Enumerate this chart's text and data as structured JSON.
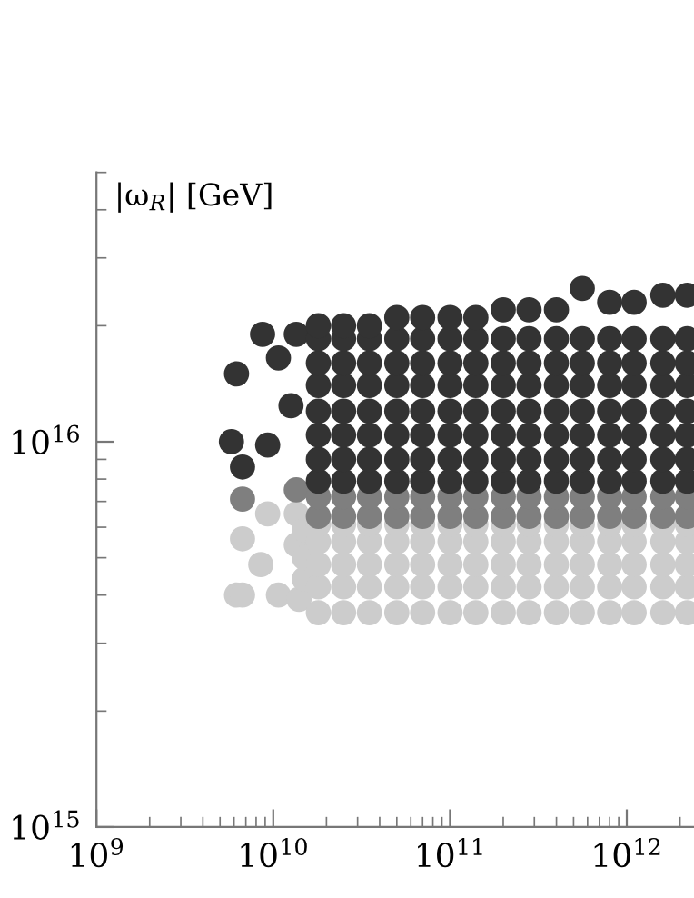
{
  "chart_data": {
    "type": "scatter",
    "ylabel": "|ω$_{R}$| [GeV]",
    "log": "xy",
    "grid": false,
    "legend": false,
    "marker": "circle",
    "xlim": [
      1000000000.0,
      2400000000000.0
    ],
    "ylim": [
      1000000000000000.0,
      5e+16
    ],
    "xticks": [
      {
        "value": 1000000000.0,
        "label": "10$^{9}$"
      },
      {
        "value": 10000000000.0,
        "label": "10$^{10}$"
      },
      {
        "value": 100000000000.0,
        "label": "10$^{11}$"
      },
      {
        "value": 1000000000000.0,
        "label": "10$^{12}$"
      }
    ],
    "yticks": [
      {
        "value": 1000000000000000.0,
        "label": "10$^{15}$"
      },
      {
        "value": 1e+16,
        "label": "10$^{16}$"
      }
    ],
    "series": [
      {
        "color": "#cccccc",
        "x": [
          6200000000.0,
          6700000000.0,
          6700000000.0,
          9300000000.0,
          8500000000.0,
          13500000000.0,
          13500000000.0,
          10700000000.0,
          14000000000.0,
          15000000000.0,
          15000000000.0,
          15000000000.0,
          18000000000.0,
          18000000000.0,
          18000000000.0,
          18000000000.0,
          18000000000.0,
          25000000000.0,
          25000000000.0,
          25000000000.0,
          25000000000.0,
          25000000000.0,
          35000000000.0,
          35000000000.0,
          35000000000.0,
          35000000000.0,
          35000000000.0,
          50000000000.0,
          50000000000.0,
          50000000000.0,
          50000000000.0,
          50000000000.0,
          70000000000.0,
          70000000000.0,
          70000000000.0,
          70000000000.0,
          70000000000.0,
          100000000000.0,
          100000000000.0,
          100000000000.0,
          100000000000.0,
          100000000000.0,
          140000000000.0,
          140000000000.0,
          140000000000.0,
          140000000000.0,
          140000000000.0,
          200000000000.0,
          200000000000.0,
          200000000000.0,
          200000000000.0,
          200000000000.0,
          280000000000.0,
          280000000000.0,
          280000000000.0,
          280000000000.0,
          280000000000.0,
          400000000000.0,
          400000000000.0,
          400000000000.0,
          400000000000.0,
          400000000000.0,
          560000000000.0,
          560000000000.0,
          560000000000.0,
          560000000000.0,
          560000000000.0,
          800000000000.0,
          800000000000.0,
          800000000000.0,
          800000000000.0,
          800000000000.0,
          1100000000000.0,
          1100000000000.0,
          1100000000000.0,
          1100000000000.0,
          1100000000000.0,
          1600000000000.0,
          1600000000000.0,
          1600000000000.0,
          1600000000000.0,
          1600000000000.0,
          2200000000000.0,
          2200000000000.0,
          2200000000000.0,
          2200000000000.0,
          2200000000000.0
        ],
        "values": [
          4000000000000000.0,
          4000000000000000.0,
          5600000000000000.0,
          6500000000000000.0,
          4800000000000000.0,
          6500000000000000.0,
          5400000000000000.0,
          4000000000000000.0,
          3900000000000000.0,
          4400000000000000.0,
          5000000000000000.0,
          5900000000000000.0,
          3600000000000000.0,
          4200000000000000.0,
          4800000000000000.0,
          5500000000000000.0,
          6100000000000000.0,
          3600000000000000.0,
          4200000000000000.0,
          4800000000000000.0,
          5500000000000000.0,
          6100000000000000.0,
          3600000000000000.0,
          4200000000000000.0,
          4800000000000000.0,
          5500000000000000.0,
          6100000000000000.0,
          3600000000000000.0,
          4200000000000000.0,
          4800000000000000.0,
          5500000000000000.0,
          6100000000000000.0,
          3600000000000000.0,
          4200000000000000.0,
          4800000000000000.0,
          5500000000000000.0,
          6100000000000000.0,
          3600000000000000.0,
          4200000000000000.0,
          4800000000000000.0,
          5500000000000000.0,
          6100000000000000.0,
          3600000000000000.0,
          4200000000000000.0,
          4800000000000000.0,
          5500000000000000.0,
          6100000000000000.0,
          3600000000000000.0,
          4200000000000000.0,
          4800000000000000.0,
          5500000000000000.0,
          6100000000000000.0,
          3600000000000000.0,
          4200000000000000.0,
          4800000000000000.0,
          5500000000000000.0,
          6100000000000000.0,
          3600000000000000.0,
          4200000000000000.0,
          4800000000000000.0,
          5500000000000000.0,
          6100000000000000.0,
          3600000000000000.0,
          4200000000000000.0,
          4800000000000000.0,
          5500000000000000.0,
          6100000000000000.0,
          3600000000000000.0,
          4200000000000000.0,
          4800000000000000.0,
          5500000000000000.0,
          6100000000000000.0,
          3600000000000000.0,
          4200000000000000.0,
          4800000000000000.0,
          5500000000000000.0,
          6100000000000000.0,
          3600000000000000.0,
          4200000000000000.0,
          4800000000000000.0,
          5500000000000000.0,
          6100000000000000.0,
          3600000000000000.0,
          4200000000000000.0,
          4800000000000000.0,
          5500000000000000.0,
          6100000000000000.0
        ]
      },
      {
        "color": "#7f7f7f",
        "x": [
          6700000000.0,
          13500000000.0,
          18000000000.0,
          18000000000.0,
          25000000000.0,
          25000000000.0,
          35000000000.0,
          35000000000.0,
          50000000000.0,
          50000000000.0,
          70000000000.0,
          70000000000.0,
          100000000000.0,
          100000000000.0,
          140000000000.0,
          140000000000.0,
          200000000000.0,
          200000000000.0,
          280000000000.0,
          280000000000.0,
          400000000000.0,
          400000000000.0,
          560000000000.0,
          560000000000.0,
          800000000000.0,
          800000000000.0,
          1100000000000.0,
          1100000000000.0,
          1600000000000.0,
          1600000000000.0,
          2200000000000.0,
          2200000000000.0
        ],
        "values": [
          7100000000000000.0,
          7500000000000000.0,
          6400000000000000.0,
          7200000000000000.0,
          6400000000000000.0,
          7200000000000000.0,
          6400000000000000.0,
          7200000000000000.0,
          6400000000000000.0,
          7200000000000000.0,
          6400000000000000.0,
          7200000000000000.0,
          6400000000000000.0,
          7200000000000000.0,
          6400000000000000.0,
          7200000000000000.0,
          6400000000000000.0,
          7200000000000000.0,
          6400000000000000.0,
          7200000000000000.0,
          6400000000000000.0,
          7200000000000000.0,
          6400000000000000.0,
          7200000000000000.0,
          6400000000000000.0,
          7200000000000000.0,
          6400000000000000.0,
          7200000000000000.0,
          6400000000000000.0,
          7200000000000000.0,
          6400000000000000.0,
          7200000000000000.0
        ]
      },
      {
        "color": "#333333",
        "x": [
          6200000000.0,
          5800000000.0,
          6700000000.0,
          8700000000.0,
          13500000000.0,
          10700000000.0,
          9300000000.0,
          12600000000.0,
          18000000000.0,
          18000000000.0,
          18000000000.0,
          18000000000.0,
          18000000000.0,
          18000000000.0,
          18000000000.0,
          18000000000.0,
          25000000000.0,
          25000000000.0,
          25000000000.0,
          25000000000.0,
          25000000000.0,
          25000000000.0,
          25000000000.0,
          25000000000.0,
          35000000000.0,
          35000000000.0,
          35000000000.0,
          35000000000.0,
          35000000000.0,
          35000000000.0,
          35000000000.0,
          35000000000.0,
          50000000000.0,
          50000000000.0,
          50000000000.0,
          50000000000.0,
          50000000000.0,
          50000000000.0,
          50000000000.0,
          50000000000.0,
          70000000000.0,
          70000000000.0,
          70000000000.0,
          70000000000.0,
          70000000000.0,
          70000000000.0,
          70000000000.0,
          70000000000.0,
          100000000000.0,
          100000000000.0,
          100000000000.0,
          100000000000.0,
          100000000000.0,
          100000000000.0,
          100000000000.0,
          100000000000.0,
          140000000000.0,
          140000000000.0,
          140000000000.0,
          140000000000.0,
          140000000000.0,
          140000000000.0,
          140000000000.0,
          140000000000.0,
          200000000000.0,
          200000000000.0,
          200000000000.0,
          200000000000.0,
          200000000000.0,
          200000000000.0,
          200000000000.0,
          200000000000.0,
          280000000000.0,
          280000000000.0,
          280000000000.0,
          280000000000.0,
          280000000000.0,
          280000000000.0,
          280000000000.0,
          280000000000.0,
          400000000000.0,
          400000000000.0,
          400000000000.0,
          400000000000.0,
          400000000000.0,
          400000000000.0,
          400000000000.0,
          400000000000.0,
          560000000000.0,
          560000000000.0,
          560000000000.0,
          560000000000.0,
          560000000000.0,
          560000000000.0,
          560000000000.0,
          560000000000.0,
          800000000000.0,
          800000000000.0,
          800000000000.0,
          800000000000.0,
          800000000000.0,
          800000000000.0,
          800000000000.0,
          800000000000.0,
          1100000000000.0,
          1100000000000.0,
          1100000000000.0,
          1100000000000.0,
          1100000000000.0,
          1100000000000.0,
          1100000000000.0,
          1100000000000.0,
          1600000000000.0,
          1600000000000.0,
          1600000000000.0,
          1600000000000.0,
          1600000000000.0,
          1600000000000.0,
          1600000000000.0,
          1600000000000.0,
          2200000000000.0,
          2200000000000.0,
          2200000000000.0,
          2200000000000.0,
          2200000000000.0,
          2200000000000.0,
          2200000000000.0,
          2200000000000.0
        ],
        "values": [
          1.5e+16,
          1e+16,
          8600000000000000.0,
          1.9e+16,
          1.9e+16,
          1.65e+16,
          9800000000000000.0,
          1.24e+16,
          7900000000000000.0,
          9000000000000000.0,
          1.04e+16,
          1.2e+16,
          1.4e+16,
          1.6e+16,
          1.85e+16,
          2e+16,
          7900000000000000.0,
          9000000000000000.0,
          1.04e+16,
          1.2e+16,
          1.4e+16,
          1.6e+16,
          1.85e+16,
          2e+16,
          7900000000000000.0,
          9000000000000000.0,
          1.04e+16,
          1.2e+16,
          1.4e+16,
          1.6e+16,
          1.85e+16,
          2e+16,
          7900000000000000.0,
          9000000000000000.0,
          1.04e+16,
          1.2e+16,
          1.4e+16,
          1.6e+16,
          1.85e+16,
          2.1e+16,
          7900000000000000.0,
          9000000000000000.0,
          1.04e+16,
          1.2e+16,
          1.4e+16,
          1.6e+16,
          1.85e+16,
          2.1e+16,
          7900000000000000.0,
          9000000000000000.0,
          1.04e+16,
          1.2e+16,
          1.4e+16,
          1.6e+16,
          1.85e+16,
          2.1e+16,
          7900000000000000.0,
          9000000000000000.0,
          1.04e+16,
          1.2e+16,
          1.4e+16,
          1.6e+16,
          1.85e+16,
          2.1e+16,
          7900000000000000.0,
          9000000000000000.0,
          1.04e+16,
          1.2e+16,
          1.4e+16,
          1.6e+16,
          1.85e+16,
          2.2e+16,
          7900000000000000.0,
          9000000000000000.0,
          1.04e+16,
          1.2e+16,
          1.4e+16,
          1.6e+16,
          1.85e+16,
          2.2e+16,
          7900000000000000.0,
          9000000000000000.0,
          1.04e+16,
          1.2e+16,
          1.4e+16,
          1.6e+16,
          1.85e+16,
          2.2e+16,
          7900000000000000.0,
          9000000000000000.0,
          1.04e+16,
          1.2e+16,
          1.4e+16,
          1.6e+16,
          1.85e+16,
          2.5e+16,
          7900000000000000.0,
          9000000000000000.0,
          1.04e+16,
          1.2e+16,
          1.4e+16,
          1.6e+16,
          1.85e+16,
          2.3e+16,
          7900000000000000.0,
          9000000000000000.0,
          1.04e+16,
          1.2e+16,
          1.4e+16,
          1.6e+16,
          1.85e+16,
          2.3e+16,
          7900000000000000.0,
          9000000000000000.0,
          1.04e+16,
          1.2e+16,
          1.4e+16,
          1.6e+16,
          1.85e+16,
          2.4e+16,
          7900000000000000.0,
          9000000000000000.0,
          1.04e+16,
          1.2e+16,
          1.4e+16,
          1.6e+16,
          1.85e+16,
          2.4e+16
        ]
      }
    ]
  }
}
